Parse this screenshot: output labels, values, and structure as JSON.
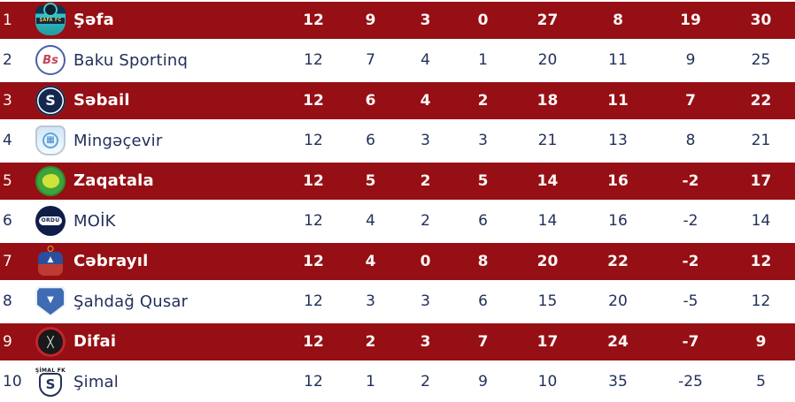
{
  "colors": {
    "row_highlight": "#950F14",
    "text_dark": "#22305A",
    "text_light": "#FFFFFF"
  },
  "table": {
    "stat_keys": [
      "played",
      "won",
      "drawn",
      "lost",
      "goals_for",
      "goals_against",
      "goal_diff",
      "points"
    ],
    "rows": [
      {
        "pos": "1",
        "team": "Şəfa",
        "highlight": true,
        "logo": {
          "icon": "shefa-crest-icon",
          "style": "shefa",
          "glyph": "ŞAFA FC",
          "label": ""
        },
        "played": "12",
        "won": "9",
        "drawn": "3",
        "lost": "0",
        "goals_for": "27",
        "goals_against": "8",
        "goal_diff": "19",
        "points": "30"
      },
      {
        "pos": "2",
        "team": "Baku Sportinq",
        "highlight": false,
        "logo": {
          "icon": "baku-sportinq-crest-icon",
          "style": "baku",
          "glyph": "Bs",
          "label": ""
        },
        "played": "12",
        "won": "7",
        "drawn": "4",
        "lost": "1",
        "goals_for": "20",
        "goals_against": "11",
        "goal_diff": "9",
        "points": "25"
      },
      {
        "pos": "3",
        "team": "Səbail",
        "highlight": true,
        "logo": {
          "icon": "sebail-crest-icon",
          "style": "sebail",
          "glyph": "S",
          "label": ""
        },
        "played": "12",
        "won": "6",
        "drawn": "4",
        "lost": "2",
        "goals_for": "18",
        "goals_against": "11",
        "goal_diff": "7",
        "points": "22"
      },
      {
        "pos": "4",
        "team": "Mingəçevir",
        "highlight": false,
        "logo": {
          "icon": "mingecevir-crest-icon",
          "style": "mingecevir",
          "glyph": "▦",
          "label": ""
        },
        "played": "12",
        "won": "6",
        "drawn": "3",
        "lost": "3",
        "goals_for": "21",
        "goals_against": "13",
        "goal_diff": "8",
        "points": "21"
      },
      {
        "pos": "5",
        "team": "Zaqatala",
        "highlight": true,
        "logo": {
          "icon": "zaqatala-crest-icon",
          "style": "zaqatala",
          "glyph": "",
          "label": ""
        },
        "played": "12",
        "won": "5",
        "drawn": "2",
        "lost": "5",
        "goals_for": "14",
        "goals_against": "16",
        "goal_diff": "-2",
        "points": "17"
      },
      {
        "pos": "6",
        "team": "MOİK",
        "highlight": false,
        "logo": {
          "icon": "moik-crest-icon",
          "style": "moik",
          "glyph": "ORDU",
          "label": ""
        },
        "played": "12",
        "won": "4",
        "drawn": "2",
        "lost": "6",
        "goals_for": "14",
        "goals_against": "16",
        "goal_diff": "-2",
        "points": "14"
      },
      {
        "pos": "7",
        "team": "Cəbrayıl",
        "highlight": true,
        "logo": {
          "icon": "cebrayil-crest-icon",
          "style": "cebrayil",
          "glyph": "▲",
          "label": ""
        },
        "played": "12",
        "won": "4",
        "drawn": "0",
        "lost": "8",
        "goals_for": "20",
        "goals_against": "22",
        "goal_diff": "-2",
        "points": "12"
      },
      {
        "pos": "8",
        "team": "Şahdağ Qusar",
        "highlight": false,
        "logo": {
          "icon": "sahdag-qusar-crest-icon",
          "style": "sahdag",
          "glyph": "▼",
          "label": ""
        },
        "played": "12",
        "won": "3",
        "drawn": "3",
        "lost": "6",
        "goals_for": "15",
        "goals_against": "20",
        "goal_diff": "-5",
        "points": "12"
      },
      {
        "pos": "9",
        "team": "Difai",
        "highlight": true,
        "logo": {
          "icon": "difai-crest-icon",
          "style": "difai",
          "glyph": "╳",
          "label": ""
        },
        "played": "12",
        "won": "2",
        "drawn": "3",
        "lost": "7",
        "goals_for": "17",
        "goals_against": "24",
        "goal_diff": "-7",
        "points": "9"
      },
      {
        "pos": "10",
        "team": "Şimal",
        "highlight": false,
        "logo": {
          "icon": "shimal-crest-icon",
          "style": "shimal",
          "glyph": "S",
          "label": "ŞİMAL FK"
        },
        "played": "12",
        "won": "1",
        "drawn": "2",
        "lost": "9",
        "goals_for": "10",
        "goals_against": "35",
        "goal_diff": "-25",
        "points": "5"
      }
    ]
  }
}
